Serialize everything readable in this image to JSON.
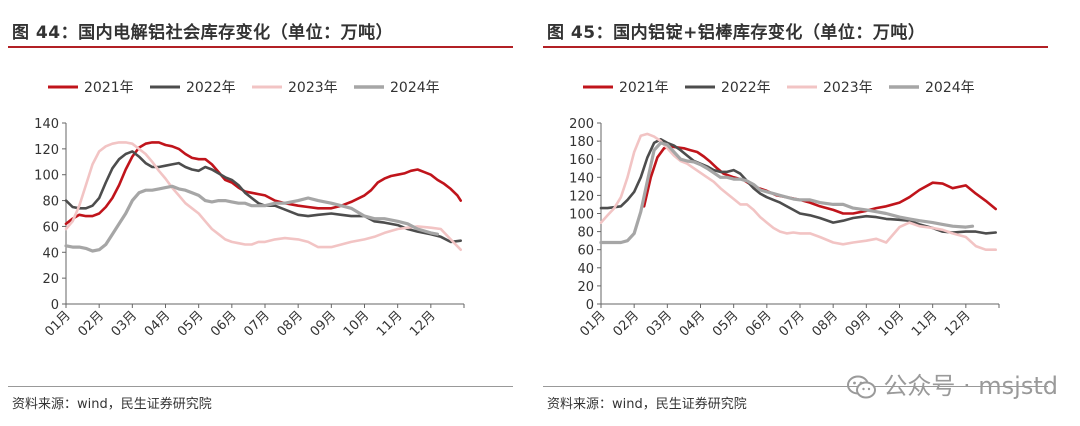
{
  "charts": [
    {
      "id": "left",
      "heading": "图 44：国内电解铝社会库存变化（单位：万吨）",
      "source": "资料来源：wind，民生证券研究院",
      "chart_data": {
        "type": "line",
        "title": "图 44：国内电解铝社会库存变化（单位：万吨）",
        "xlabel": "",
        "ylabel": "",
        "ylim": [
          0,
          140
        ],
        "yticks": [
          0,
          20,
          40,
          60,
          80,
          100,
          120,
          140
        ],
        "xlim": [
          1,
          13
        ],
        "categories": [
          "01月",
          "02月",
          "03月",
          "04月",
          "05月",
          "06月",
          "07月",
          "08月",
          "09月",
          "10月",
          "11月",
          "12月"
        ],
        "legend_position": "top",
        "grid": false,
        "series": [
          {
            "name": "2021年",
            "color": "#c0141b",
            "width": 2.6,
            "x": [
              1,
              1.2,
              1.4,
              1.6,
              1.8,
              2,
              2.2,
              2.4,
              2.6,
              2.8,
              3,
              3.2,
              3.4,
              3.6,
              3.8,
              4,
              4.2,
              4.4,
              4.6,
              4.8,
              5,
              5.2,
              5.4,
              5.6,
              5.8,
              6,
              6.2,
              6.4,
              6.6,
              6.8,
              7,
              7.3,
              7.6,
              8,
              8.3,
              8.6,
              9,
              9.3,
              9.6,
              10,
              10.2,
              10.4,
              10.6,
              10.8,
              11,
              11.2,
              11.4,
              11.6,
              11.8,
              12,
              12.2,
              12.4,
              12.6,
              12.8,
              12.9
            ],
            "y": [
              62,
              66,
              69,
              68,
              68,
              70,
              75,
              82,
              92,
              104,
              114,
              121,
              124,
              125,
              125,
              123,
              122,
              120,
              116,
              113,
              112,
              112,
              108,
              102,
              96,
              94,
              90,
              87,
              86,
              85,
              84,
              80,
              78,
              76,
              75,
              74,
              74,
              76,
              79,
              84,
              88,
              94,
              97,
              99,
              100,
              101,
              103,
              104,
              102,
              100,
              96,
              93,
              89,
              84,
              80
            ]
          },
          {
            "name": "2022年",
            "color": "#4d4d4d",
            "width": 2.6,
            "x": [
              1,
              1.2,
              1.4,
              1.6,
              1.8,
              2,
              2.2,
              2.4,
              2.6,
              2.8,
              3,
              3.2,
              3.4,
              3.6,
              3.8,
              4,
              4.2,
              4.4,
              4.6,
              4.8,
              5,
              5.2,
              5.4,
              5.6,
              5.8,
              6,
              6.2,
              6.4,
              6.6,
              6.8,
              7,
              7.3,
              7.6,
              8,
              8.3,
              8.6,
              9,
              9.3,
              9.6,
              10,
              10.3,
              10.6,
              11,
              11.3,
              11.6,
              12,
              12.3,
              12.6,
              12.9
            ],
            "y": [
              80,
              75,
              74,
              74,
              76,
              82,
              94,
              105,
              112,
              116,
              118,
              114,
              109,
              106,
              106,
              107,
              108,
              109,
              106,
              104,
              103,
              106,
              104,
              101,
              98,
              96,
              92,
              86,
              82,
              78,
              76,
              76,
              73,
              69,
              68,
              69,
              70,
              69,
              68,
              68,
              64,
              63,
              61,
              58,
              56,
              54,
              52,
              48,
              49
            ]
          },
          {
            "name": "2023年",
            "color": "#f2c4c4",
            "width": 2.6,
            "x": [
              1,
              1.2,
              1.4,
              1.6,
              1.8,
              2,
              2.2,
              2.4,
              2.6,
              2.8,
              3,
              3.2,
              3.4,
              3.6,
              3.8,
              4,
              4.2,
              4.4,
              4.6,
              4.8,
              5,
              5.2,
              5.4,
              5.6,
              5.8,
              6,
              6.2,
              6.4,
              6.6,
              6.8,
              7,
              7.3,
              7.6,
              8,
              8.3,
              8.6,
              9,
              9.3,
              9.6,
              10,
              10.3,
              10.6,
              11,
              11.3,
              11.6,
              12,
              12.3,
              12.6,
              12.9
            ],
            "y": [
              58,
              64,
              76,
              92,
              108,
              118,
              122,
              124,
              125,
              125,
              124,
              120,
              116,
              110,
              103,
              97,
              90,
              84,
              78,
              74,
              70,
              64,
              58,
              54,
              50,
              48,
              47,
              46,
              46,
              48,
              48,
              50,
              51,
              50,
              48,
              44,
              44,
              46,
              48,
              50,
              52,
              55,
              58,
              59,
              60,
              59,
              58,
              50,
              42
            ]
          },
          {
            "name": "2024年",
            "color": "#a6a6a6",
            "width": 3.2,
            "x": [
              1,
              1.2,
              1.4,
              1.6,
              1.8,
              2,
              2.2,
              2.4,
              2.6,
              2.8,
              3,
              3.2,
              3.4,
              3.6,
              3.8,
              4,
              4.2,
              4.4,
              4.6,
              4.8,
              5,
              5.2,
              5.4,
              5.6,
              5.8,
              6,
              6.2,
              6.4,
              6.6,
              6.8,
              7,
              7.3,
              7.6,
              8,
              8.3,
              8.6,
              9,
              9.3,
              9.6,
              10,
              10.3,
              10.6,
              11,
              11.3,
              11.6,
              12,
              12.2
            ],
            "y": [
              45,
              44,
              44,
              43,
              41,
              42,
              46,
              54,
              62,
              70,
              80,
              86,
              88,
              88,
              89,
              90,
              91,
              89,
              88,
              86,
              84,
              80,
              79,
              80,
              80,
              79,
              78,
              78,
              76,
              76,
              76,
              78,
              78,
              80,
              82,
              80,
              78,
              76,
              74,
              68,
              66,
              66,
              64,
              62,
              58,
              55,
              54
            ]
          }
        ]
      }
    },
    {
      "id": "right",
      "heading": "图 45：国内铝锭+铝棒库存变化（单位：万吨）",
      "source": "资料来源：wind，民生证券研究院",
      "chart_data": {
        "type": "line",
        "title": "图 45：国内铝锭+铝棒库存变化（单位：万吨）",
        "xlabel": "",
        "ylabel": "",
        "ylim": [
          0,
          200
        ],
        "yticks": [
          0,
          20,
          40,
          60,
          80,
          100,
          120,
          140,
          160,
          180,
          200
        ],
        "xlim": [
          1,
          13
        ],
        "categories": [
          "01月",
          "02月",
          "03月",
          "04月",
          "05月",
          "06月",
          "07月",
          "08月",
          "09月",
          "10月",
          "11月",
          "12月"
        ],
        "legend_position": "top",
        "grid": false,
        "series": [
          {
            "name": "2021年",
            "color": "#c0141b",
            "width": 2.6,
            "x": [
              2.3,
              2.5,
              2.7,
              2.9,
              3.1,
              3.3,
              3.5,
              3.7,
              3.9,
              4.1,
              4.3,
              4.5,
              4.7,
              5,
              5.3,
              5.6,
              6,
              6.3,
              6.6,
              7,
              7.3,
              7.6,
              8,
              8.3,
              8.6,
              9,
              9.3,
              9.6,
              10,
              10.3,
              10.6,
              11,
              11.3,
              11.6,
              12,
              12.3,
              12.6,
              12.9
            ],
            "y": [
              108,
              140,
              162,
              172,
              174,
              173,
              172,
              170,
              168,
              163,
              157,
              150,
              144,
              140,
              137,
              130,
              125,
              120,
              118,
              115,
              112,
              108,
              104,
              100,
              100,
              103,
              106,
              108,
              112,
              118,
              126,
              134,
              133,
              128,
              131,
              122,
              114,
              105
            ]
          },
          {
            "name": "2022年",
            "color": "#4d4d4d",
            "width": 2.6,
            "x": [
              1,
              1.2,
              1.4,
              1.6,
              1.8,
              2,
              2.2,
              2.4,
              2.6,
              2.8,
              3,
              3.2,
              3.4,
              3.6,
              3.8,
              4,
              4.2,
              4.4,
              4.6,
              4.8,
              5,
              5.2,
              5.4,
              5.6,
              5.8,
              6,
              6.2,
              6.4,
              6.6,
              6.8,
              7,
              7.3,
              7.6,
              8,
              8.3,
              8.6,
              9,
              9.3,
              9.6,
              10,
              10.3,
              10.6,
              11,
              11.3,
              11.6,
              12,
              12.3,
              12.6,
              12.9
            ],
            "y": [
              106,
              106,
              107,
              108,
              115,
              124,
              140,
              162,
              178,
              182,
              178,
              175,
              170,
              164,
              158,
              155,
              152,
              148,
              146,
              146,
              148,
              144,
              136,
              128,
              122,
              118,
              115,
              112,
              108,
              104,
              100,
              98,
              95,
              90,
              92,
              95,
              97,
              96,
              94,
              93,
              92,
              88,
              84,
              80,
              79,
              80,
              80,
              78,
              79
            ]
          },
          {
            "name": "2023年",
            "color": "#f2c4c4",
            "width": 2.6,
            "x": [
              1,
              1.2,
              1.4,
              1.6,
              1.8,
              2,
              2.2,
              2.4,
              2.6,
              2.8,
              3,
              3.2,
              3.4,
              3.6,
              3.8,
              4,
              4.2,
              4.4,
              4.6,
              4.8,
              5,
              5.2,
              5.4,
              5.6,
              5.8,
              6,
              6.2,
              6.4,
              6.6,
              6.8,
              7,
              7.3,
              7.6,
              8,
              8.3,
              8.6,
              9,
              9.3,
              9.6,
              10,
              10.3,
              10.6,
              11,
              11.3,
              11.6,
              12,
              12.3,
              12.6,
              12.9
            ],
            "y": [
              90,
              98,
              106,
              118,
              140,
              168,
              186,
              188,
              185,
              180,
              172,
              164,
              158,
              155,
              150,
              145,
              140,
              135,
              128,
              122,
              116,
              110,
              110,
              104,
              96,
              90,
              84,
              80,
              78,
              79,
              78,
              78,
              74,
              68,
              66,
              68,
              70,
              72,
              68,
              85,
              90,
              86,
              84,
              82,
              78,
              74,
              64,
              60,
              60
            ]
          },
          {
            "name": "2024年",
            "color": "#a6a6a6",
            "width": 3.2,
            "x": [
              1,
              1.2,
              1.4,
              1.6,
              1.8,
              2,
              2.2,
              2.4,
              2.6,
              2.8,
              3,
              3.2,
              3.4,
              3.6,
              3.8,
              4,
              4.2,
              4.4,
              4.6,
              4.8,
              5,
              5.2,
              5.4,
              5.6,
              5.8,
              6,
              6.2,
              6.4,
              6.6,
              6.8,
              7,
              7.3,
              7.6,
              8,
              8.3,
              8.6,
              9,
              9.3,
              9.6,
              10,
              10.3,
              10.6,
              11,
              11.3,
              11.6,
              12,
              12.2
            ],
            "y": [
              68,
              68,
              68,
              68,
              70,
              78,
              102,
              136,
              170,
              178,
              176,
              168,
              160,
              158,
              157,
              154,
              150,
              145,
              140,
              140,
              138,
              138,
              136,
              132,
              126,
              124,
              122,
              120,
              118,
              116,
              115,
              115,
              112,
              110,
              110,
              106,
              104,
              102,
              100,
              96,
              94,
              92,
              90,
              88,
              86,
              85,
              86
            ]
          }
        ]
      }
    }
  ],
  "watermark": {
    "text": "公众号 · msjstd",
    "icon": "wechat-icon"
  }
}
